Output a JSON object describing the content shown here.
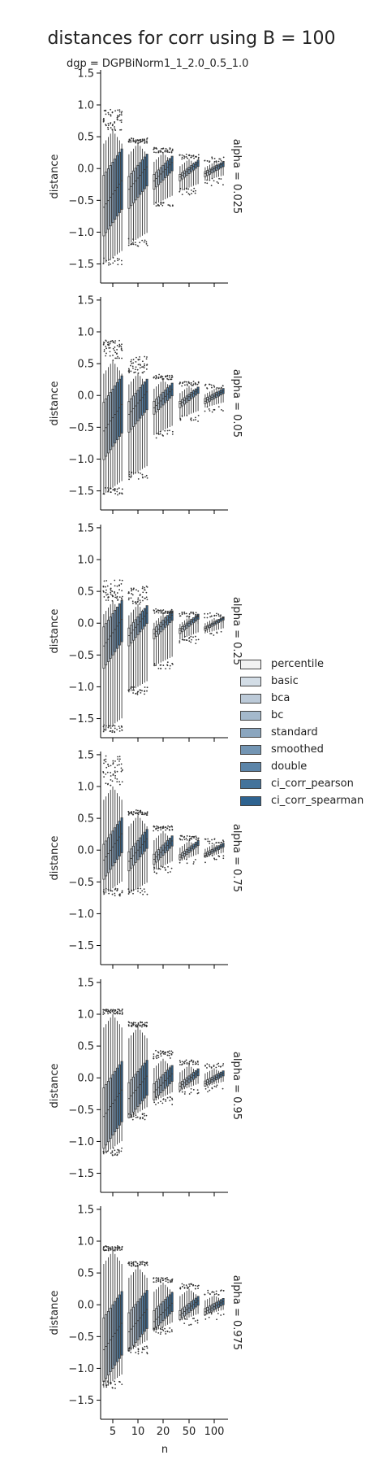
{
  "chart_data": {
    "type": "box",
    "title": "distances for corr using B = 100",
    "subtitle": "dgp = DGPBiNorm1_1_2.0_0.5_1.0",
    "xlabel": "n",
    "ylabel": "distance",
    "categories": [
      "5",
      "10",
      "20",
      "50",
      "100"
    ],
    "yticks": [
      "1.5",
      "1.0",
      "0.5",
      "0.0",
      "−0.5",
      "−1.0",
      "−1.5"
    ],
    "ylim": [
      -1.8,
      1.55
    ],
    "legend": {
      "placement": "right",
      "entries": [
        "percentile",
        "basic",
        "bca",
        "bc",
        "standard",
        "smoothed",
        "double",
        "ci_corr_pearson",
        "ci_corr_spearman"
      ],
      "colors": [
        "#f2f2f2",
        "#d3dde6",
        "#bccad8",
        "#a4b9cc",
        "#8ba6bf",
        "#7395b3",
        "#5b84a8",
        "#44739b",
        "#2e6390"
      ]
    },
    "panels": [
      {
        "label": "alpha = 0.025",
        "medians": [
          -0.4,
          -0.15,
          -0.05,
          -0.02,
          0.0
        ],
        "q1": [
          -0.85,
          -0.45,
          -0.18,
          -0.08,
          -0.05
        ],
        "q3": [
          0.1,
          0.05,
          0.05,
          0.02,
          0.03
        ],
        "lo": [
          -1.4,
          -1.1,
          -0.5,
          -0.3,
          -0.15
        ],
        "hi": [
          0.6,
          0.4,
          0.25,
          0.15,
          0.1
        ],
        "outlier_hi": [
          0.85,
          0.4,
          0.25,
          0.15,
          0.1
        ]
      },
      {
        "label": "alpha = 0.05",
        "medians": [
          -0.35,
          -0.12,
          -0.05,
          -0.02,
          -0.01
        ],
        "q1": [
          -0.8,
          -0.4,
          -0.15,
          -0.08,
          -0.05
        ],
        "q3": [
          0.1,
          0.08,
          0.05,
          0.02,
          0.03
        ],
        "lo": [
          -1.45,
          -1.2,
          -0.55,
          -0.3,
          -0.15
        ],
        "hi": [
          0.55,
          0.35,
          0.25,
          0.15,
          0.1
        ],
        "outlier_hi": [
          0.8,
          0.55,
          0.25,
          0.15,
          0.1
        ]
      },
      {
        "label": "alpha = 0.25",
        "medians": [
          -0.15,
          -0.02,
          -0.02,
          0.0,
          0.0
        ],
        "q1": [
          -0.5,
          -0.18,
          -0.1,
          -0.05,
          -0.03
        ],
        "q3": [
          0.15,
          0.1,
          0.05,
          0.03,
          0.02
        ],
        "lo": [
          -1.6,
          -1.0,
          -0.6,
          -0.2,
          -0.12
        ],
        "hi": [
          0.35,
          0.3,
          0.15,
          0.1,
          0.08
        ],
        "outlier_hi": [
          0.6,
          0.5,
          0.15,
          0.1,
          0.08
        ]
      },
      {
        "label": "alpha = 0.75",
        "medians": [
          0.05,
          0.0,
          0.0,
          0.0,
          0.0
        ],
        "q1": [
          -0.25,
          -0.15,
          -0.08,
          -0.04,
          -0.03
        ],
        "q3": [
          0.3,
          0.15,
          0.08,
          0.04,
          0.03
        ],
        "lo": [
          -0.6,
          -0.6,
          -0.25,
          -0.12,
          -0.08
        ],
        "hi": [
          1.0,
          0.55,
          0.3,
          0.15,
          0.1
        ],
        "outlier_hi": [
          1.4,
          0.55,
          0.3,
          0.15,
          0.1
        ]
      },
      {
        "label": "alpha = 0.95",
        "medians": [
          -0.4,
          -0.15,
          -0.08,
          -0.02,
          -0.01
        ],
        "q1": [
          -0.9,
          -0.45,
          -0.2,
          -0.08,
          -0.05
        ],
        "q3": [
          0.05,
          0.1,
          0.05,
          0.03,
          0.03
        ],
        "lo": [
          -1.1,
          -0.55,
          -0.3,
          -0.15,
          -0.1
        ],
        "hi": [
          1.0,
          0.8,
          0.3,
          0.2,
          0.15
        ],
        "outlier_hi": [
          1.0,
          0.8,
          0.35,
          0.2,
          0.15
        ]
      },
      {
        "label": "alpha = 0.975",
        "medians": [
          -0.5,
          -0.25,
          -0.12,
          -0.05,
          -0.03
        ],
        "q1": [
          -1.0,
          -0.55,
          -0.25,
          -0.12,
          -0.08
        ],
        "q3": [
          0.0,
          0.05,
          0.05,
          0.02,
          0.02
        ],
        "lo": [
          -1.2,
          -0.65,
          -0.35,
          -0.2,
          -0.12
        ],
        "hi": [
          0.85,
          0.6,
          0.35,
          0.25,
          0.15
        ],
        "outlier_hi": [
          0.85,
          0.6,
          0.35,
          0.25,
          0.15
        ]
      }
    ]
  }
}
